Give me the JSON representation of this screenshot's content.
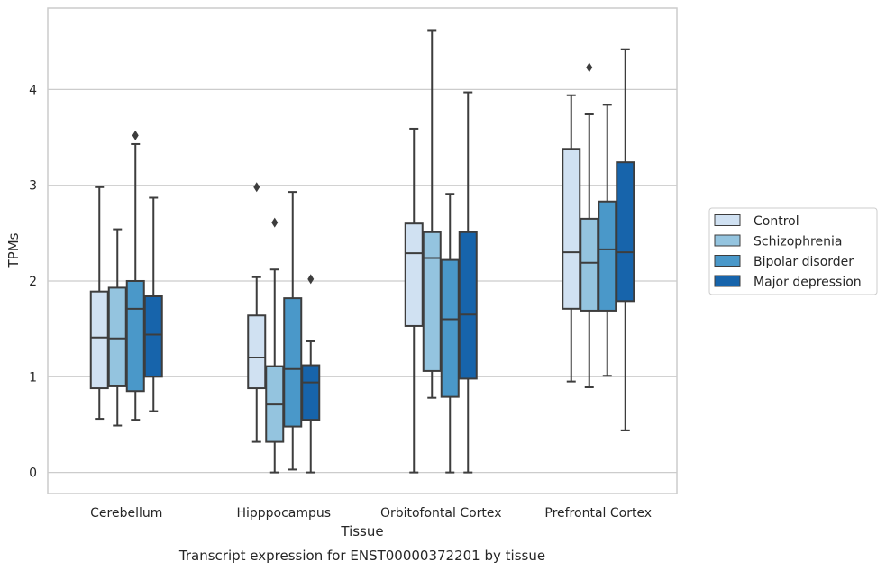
{
  "chart_data": {
    "type": "box",
    "title": "",
    "caption": "Transcript expression for ENST00000372201 by tissue",
    "xlabel": "Tissue",
    "ylabel": "TPMs",
    "ylim": [
      -0.22,
      4.85
    ],
    "yticks": [
      "0",
      "1",
      "2",
      "3",
      "4"
    ],
    "grid": "horizontal",
    "legend_position": "right",
    "categories": [
      "Cerebellum",
      "Hipppocampus",
      "Orbitofontal Cortex",
      "Prefrontal Cortex"
    ],
    "series": [
      {
        "name": "Control",
        "color": "#d0e1f2",
        "boxes": [
          {
            "whisker_low": 0.56,
            "q1": 0.88,
            "median": 1.41,
            "q3": 1.89,
            "whisker_high": 2.98,
            "outliers": []
          },
          {
            "whisker_low": 0.32,
            "q1": 0.88,
            "median": 1.2,
            "q3": 1.64,
            "whisker_high": 2.04,
            "outliers": [
              2.98
            ]
          },
          {
            "whisker_low": 0.0,
            "q1": 1.53,
            "median": 2.29,
            "q3": 2.6,
            "whisker_high": 3.59,
            "outliers": []
          },
          {
            "whisker_low": 0.95,
            "q1": 1.71,
            "median": 2.3,
            "q3": 3.38,
            "whisker_high": 3.94,
            "outliers": []
          }
        ]
      },
      {
        "name": "Schizophrenia",
        "color": "#94c4df",
        "boxes": [
          {
            "whisker_low": 0.49,
            "q1": 0.9,
            "median": 1.4,
            "q3": 1.93,
            "whisker_high": 2.54,
            "outliers": []
          },
          {
            "whisker_low": 0.0,
            "q1": 0.32,
            "median": 0.71,
            "q3": 1.11,
            "whisker_high": 2.12,
            "outliers": [
              2.61
            ]
          },
          {
            "whisker_low": 0.78,
            "q1": 1.06,
            "median": 2.24,
            "q3": 2.51,
            "whisker_high": 4.62,
            "outliers": []
          },
          {
            "whisker_low": 0.89,
            "q1": 1.69,
            "median": 2.19,
            "q3": 2.65,
            "whisker_high": 3.74,
            "outliers": [
              4.23
            ]
          }
        ]
      },
      {
        "name": "Bipolar disorder",
        "color": "#4a98c9",
        "boxes": [
          {
            "whisker_low": 0.55,
            "q1": 0.85,
            "median": 1.71,
            "q3": 2.0,
            "whisker_high": 3.43,
            "outliers": [
              3.52
            ]
          },
          {
            "whisker_low": 0.03,
            "q1": 0.48,
            "median": 1.08,
            "q3": 1.82,
            "whisker_high": 2.93,
            "outliers": []
          },
          {
            "whisker_low": 0.0,
            "q1": 0.79,
            "median": 1.6,
            "q3": 2.22,
            "whisker_high": 2.91,
            "outliers": []
          },
          {
            "whisker_low": 1.01,
            "q1": 1.69,
            "median": 2.33,
            "q3": 2.83,
            "whisker_high": 3.84,
            "outliers": []
          }
        ]
      },
      {
        "name": "Major depression",
        "color": "#1764ab",
        "boxes": [
          {
            "whisker_low": 0.64,
            "q1": 1.0,
            "median": 1.44,
            "q3": 1.84,
            "whisker_high": 2.87,
            "outliers": []
          },
          {
            "whisker_low": 0.0,
            "q1": 0.55,
            "median": 0.94,
            "q3": 1.12,
            "whisker_high": 1.37,
            "outliers": [
              2.02
            ]
          },
          {
            "whisker_low": 0.0,
            "q1": 0.98,
            "median": 1.65,
            "q3": 2.51,
            "whisker_high": 3.97,
            "outliers": []
          },
          {
            "whisker_low": 0.44,
            "q1": 1.79,
            "median": 2.3,
            "q3": 3.24,
            "whisker_high": 4.42,
            "outliers": []
          }
        ]
      }
    ]
  }
}
